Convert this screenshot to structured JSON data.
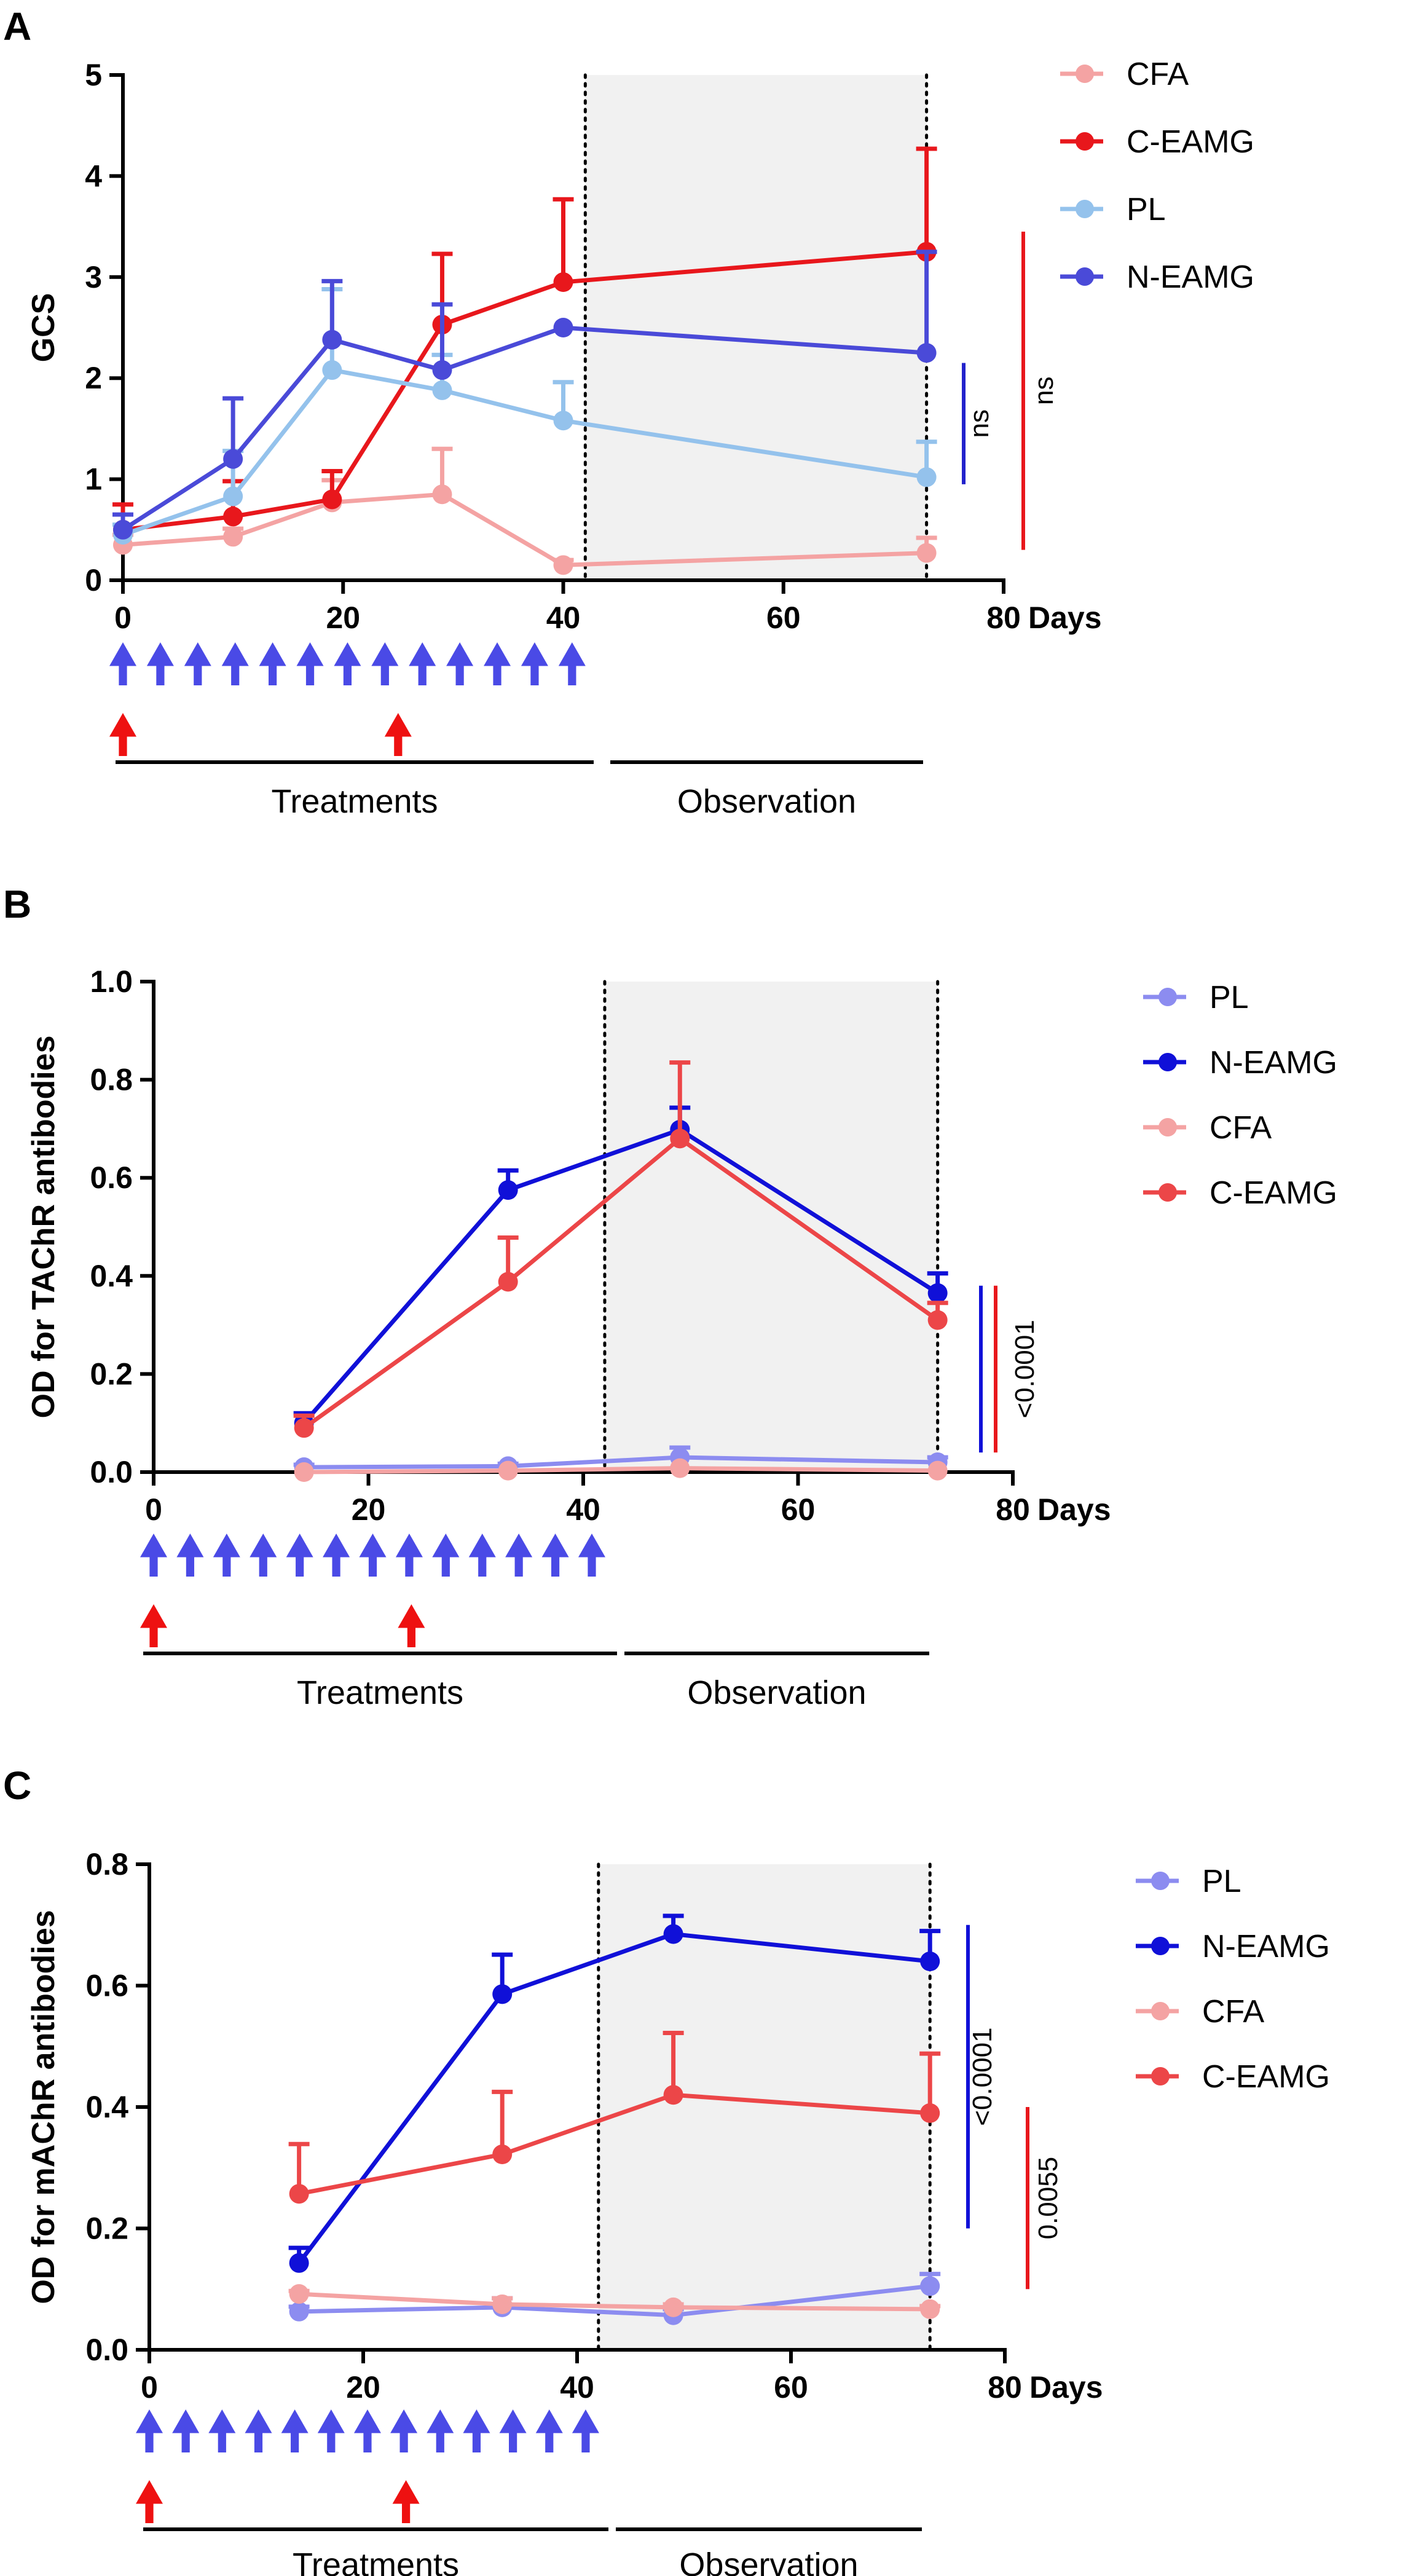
{
  "panels": [
    {
      "label": "A",
      "chart_data": {
        "type": "line",
        "ylabel": "GCS",
        "xlabel": "Days",
        "xlim": [
          0,
          80
        ],
        "ylim": [
          0,
          5
        ],
        "xticks": [
          0,
          20,
          40,
          60,
          80
        ],
        "yticks": [
          0,
          1,
          2,
          3,
          4,
          5
        ],
        "ytick_labels": [
          "0",
          "1",
          "2",
          "3",
          "4",
          "5"
        ],
        "observation_window": [
          42,
          73
        ],
        "series": [
          {
            "name": "CFA",
            "color": "#f4a3a3",
            "x": [
              0,
              10,
              19,
              29,
              40,
              73
            ],
            "y": [
              0.35,
              0.43,
              0.77,
              0.85,
              0.15,
              0.27
            ],
            "err": [
              0.1,
              0.08,
              0.22,
              0.45,
              0.05,
              0.15
            ]
          },
          {
            "name": "C-EAMG",
            "color": "#e8171c",
            "x": [
              0,
              10,
              19,
              29,
              40,
              73
            ],
            "y": [
              0.5,
              0.63,
              0.8,
              2.53,
              2.95,
              3.25
            ],
            "err": [
              0.25,
              0.35,
              0.28,
              0.7,
              0.82,
              1.02
            ]
          },
          {
            "name": "PL",
            "color": "#94c2ec",
            "x": [
              0,
              10,
              19,
              29,
              40,
              73
            ],
            "y": [
              0.45,
              0.83,
              2.08,
              1.88,
              1.58,
              1.02
            ],
            "err": [
              0.1,
              0.45,
              0.8,
              0.35,
              0.38,
              0.35
            ]
          },
          {
            "name": "N-EAMG",
            "color": "#4a4ad8",
            "x": [
              0,
              10,
              19,
              29,
              40,
              73
            ],
            "y": [
              0.5,
              1.2,
              2.38,
              2.08,
              2.5,
              2.25
            ],
            "err": [
              0.15,
              0.6,
              0.58,
              0.65,
              0.0,
              1.0
            ]
          }
        ],
        "significance": [
          {
            "label": "ns",
            "color": "#2222cc",
            "from": 0.95,
            "to": 2.15
          },
          {
            "label": "ns",
            "color": "#e8171c",
            "from": 0.3,
            "to": 3.45
          }
        ]
      },
      "treatment_days": [
        0,
        3.4,
        6.8,
        10.2,
        13.6,
        17,
        20.4,
        23.8,
        27.2,
        30.6,
        34,
        37.4,
        40.8
      ],
      "boost_days": [
        0,
        25
      ],
      "treatments_label": "Treatments",
      "observation_label": "Observation"
    },
    {
      "label": "B",
      "chart_data": {
        "type": "line",
        "ylabel": "OD for TAChR antibodies",
        "xlabel": "Days",
        "xlim": [
          0,
          80
        ],
        "ylim": [
          0,
          1
        ],
        "xticks": [
          0,
          20,
          40,
          60,
          80
        ],
        "yticks": [
          0,
          0.2,
          0.4,
          0.6,
          0.8,
          1.0
        ],
        "ytick_labels": [
          "0.0",
          "0.2",
          "0.4",
          "0.6",
          "0.8",
          "1.0"
        ],
        "observation_window": [
          42,
          73
        ],
        "series": [
          {
            "name": "PL",
            "color": "#8c8cf0",
            "x": [
              14,
              33,
              49,
              73
            ],
            "y": [
              0.01,
              0.012,
              0.03,
              0.02
            ],
            "err": [
              0.005,
              0.005,
              0.02,
              0.01
            ]
          },
          {
            "name": "N-EAMG",
            "color": "#1010d8",
            "x": [
              14,
              33,
              49,
              73
            ],
            "y": [
              0.1,
              0.575,
              0.698,
              0.365
            ],
            "err": [
              0.02,
              0.04,
              0.045,
              0.04
            ]
          },
          {
            "name": "CFA",
            "color": "#f4a3a3",
            "x": [
              14,
              33,
              49,
              73
            ],
            "y": [
              0.0,
              0.003,
              0.008,
              0.003
            ],
            "err": [
              0.0,
              0.0,
              0.0,
              0.0
            ]
          },
          {
            "name": "C-EAMG",
            "color": "#ec4648",
            "x": [
              14,
              33,
              49,
              73
            ],
            "y": [
              0.09,
              0.388,
              0.68,
              0.31
            ],
            "err": [
              0.025,
              0.09,
              0.155,
              0.035
            ]
          }
        ],
        "significance": [
          {
            "label": "<0.0001",
            "color": "#1010d8",
            "from": 0.04,
            "to": 0.38
          },
          {
            "label": "",
            "color": "#e8171c",
            "from": 0.04,
            "to": 0.38
          }
        ]
      },
      "treatment_days": [
        0,
        3.4,
        6.8,
        10.2,
        13.6,
        17,
        20.4,
        23.8,
        27.2,
        30.6,
        34,
        37.4,
        40.8
      ],
      "boost_days": [
        0,
        24
      ],
      "treatments_label": "Treatments",
      "observation_label": "Observation"
    },
    {
      "label": "C",
      "chart_data": {
        "type": "line",
        "ylabel": "OD for mAChR antibodies",
        "xlabel": "Days",
        "xlim": [
          0,
          80
        ],
        "ylim": [
          0,
          0.8
        ],
        "xticks": [
          0,
          20,
          40,
          60,
          80
        ],
        "yticks": [
          0,
          0.2,
          0.4,
          0.6,
          0.8
        ],
        "ytick_labels": [
          "0.0",
          "0.2",
          "0.4",
          "0.6",
          "0.8"
        ],
        "observation_window": [
          42,
          73
        ],
        "series": [
          {
            "name": "PL",
            "color": "#8c8cf0",
            "x": [
              14,
              33,
              49,
              73
            ],
            "y": [
              0.063,
              0.07,
              0.057,
              0.105
            ],
            "err": [
              0.008,
              0.015,
              0.01,
              0.02
            ]
          },
          {
            "name": "N-EAMG",
            "color": "#1010d8",
            "x": [
              14,
              33,
              49,
              73
            ],
            "y": [
              0.143,
              0.586,
              0.685,
              0.64
            ],
            "err": [
              0.025,
              0.065,
              0.03,
              0.05
            ]
          },
          {
            "name": "CFA",
            "color": "#f4a3a3",
            "x": [
              14,
              33,
              49,
              73
            ],
            "y": [
              0.092,
              0.075,
              0.07,
              0.067
            ],
            "err": [
              0.005,
              0.01,
              0.005,
              0.005
            ]
          },
          {
            "name": "C-EAMG",
            "color": "#ec4648",
            "x": [
              14,
              33,
              49,
              73
            ],
            "y": [
              0.257,
              0.322,
              0.42,
              0.39
            ],
            "err": [
              0.082,
              0.103,
              0.102,
              0.098
            ]
          }
        ],
        "significance": [
          {
            "label": "<0.0001",
            "color": "#1010d8",
            "from": 0.2,
            "to": 0.7
          },
          {
            "label": "0.0055",
            "color": "#e8171c",
            "from": 0.1,
            "to": 0.4
          }
        ]
      },
      "treatment_days": [
        0,
        3.4,
        6.8,
        10.2,
        13.6,
        17,
        20.4,
        23.8,
        27.2,
        30.6,
        34,
        37.4,
        40.8
      ],
      "boost_days": [
        0,
        24
      ],
      "treatments_label": "Treatments",
      "observation_label": "Observation"
    }
  ],
  "colors": {
    "treatment_arrow": "#4a4ae6",
    "boost_arrow": "#ee1111",
    "observation_shade": "#f1f1f1"
  }
}
